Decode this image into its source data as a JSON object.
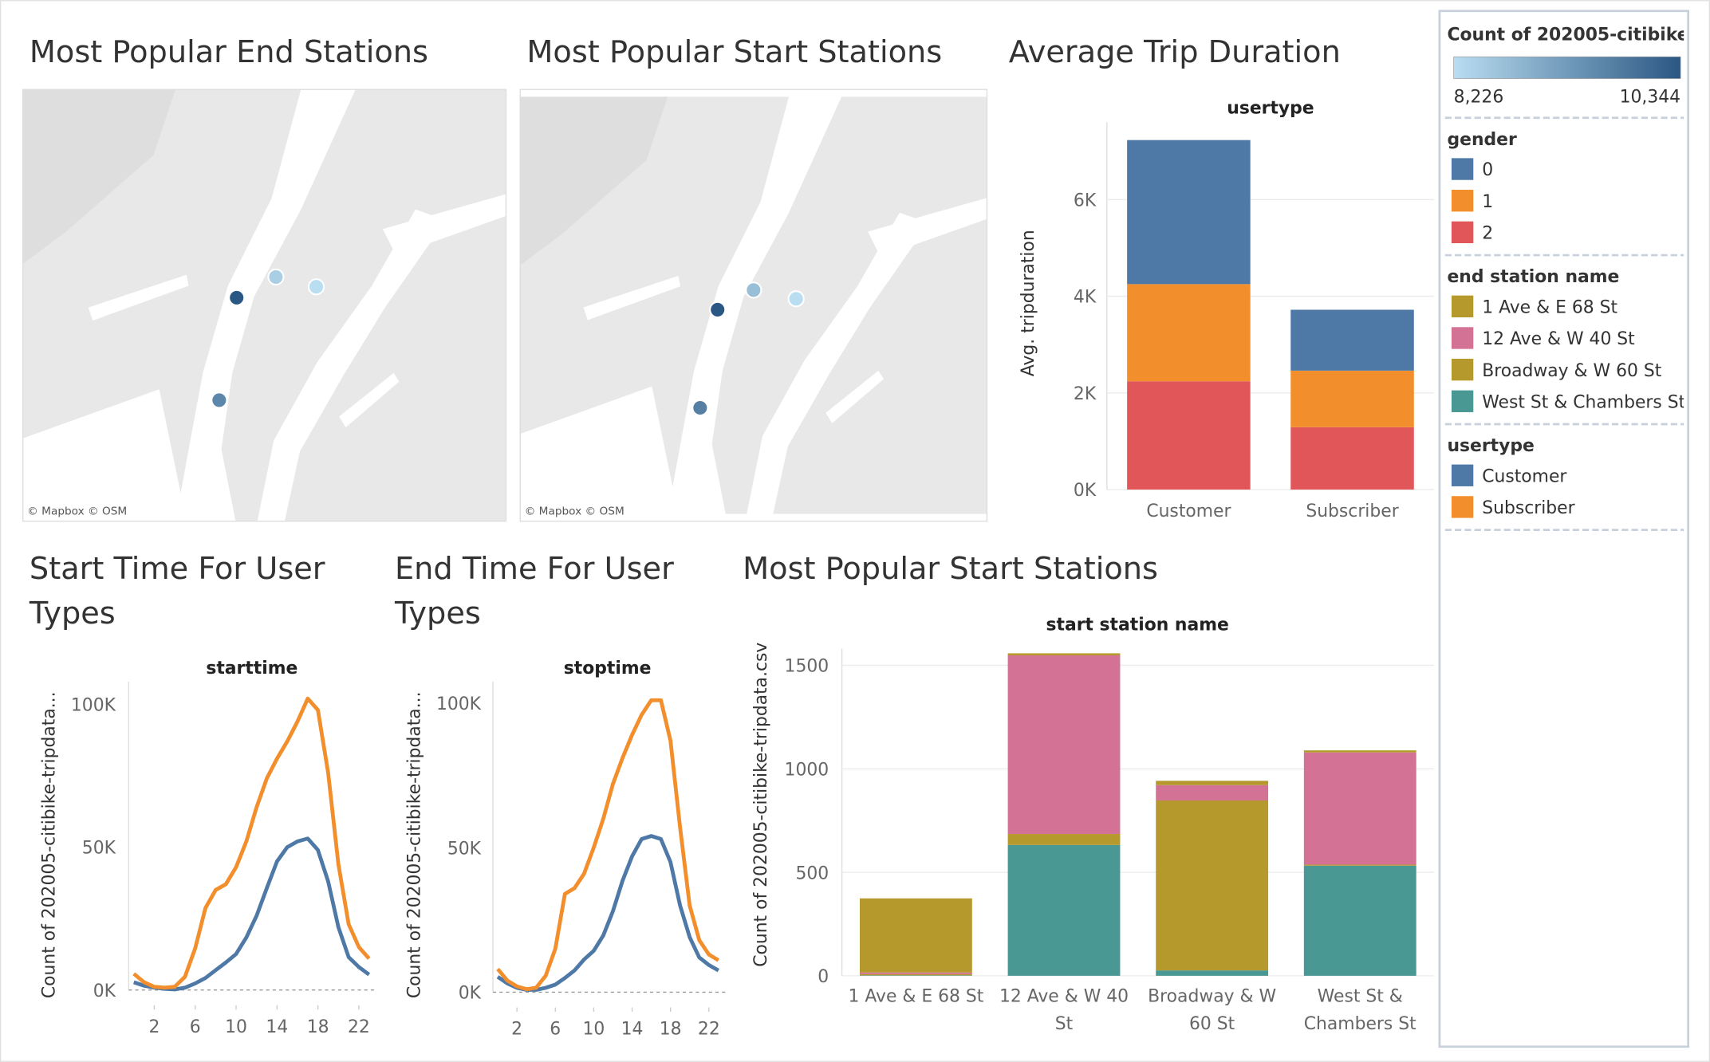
{
  "legend_panel": {
    "color_title": "Count of 202005-citibike-..",
    "color_min": {
      "value": 8226,
      "label": "8,226"
    },
    "color_max": {
      "value": 10344,
      "label": "10,344"
    },
    "colors": [
      "#b9ddf1",
      "#2a5783"
    ]
  },
  "chart_data": [
    {
      "type": "map",
      "title": "Most Popular End Stations",
      "attribution": "© Mapbox © OSM",
      "values": [
        10344,
        9600,
        8450,
        8226
      ]
    },
    {
      "type": "map",
      "title": "Most Popular Start Stations",
      "attribution": "© Mapbox © OSM",
      "values": [
        10344,
        9700,
        8700,
        8226
      ]
    },
    {
      "type": "bar",
      "title": "Average Trip Duration",
      "subtitle": "usertype",
      "y_label": "Avg. tripduration",
      "legend_title": "gender",
      "categories": [
        "Customer",
        "Subscriber"
      ],
      "series": [
        {
          "name": "0",
          "color": "#4e79a7",
          "values": [
            2980,
            1260
          ]
        },
        {
          "name": "1",
          "color": "#f28e2b",
          "values": [
            2010,
            1170
          ]
        },
        {
          "name": "2",
          "color": "#e15759",
          "values": [
            2240,
            1290
          ]
        }
      ],
      "ylim": [
        0,
        7600
      ],
      "yticks": [
        {
          "value": 0,
          "label": "0K"
        },
        {
          "value": 2000,
          "label": "2K"
        },
        {
          "value": 4000,
          "label": "4K"
        },
        {
          "value": 6000,
          "label": "6K"
        }
      ],
      "grid": true,
      "stacked": true
    },
    {
      "type": "line",
      "title": "Start Time For User Types",
      "subtitle": "starttime",
      "y_label": "Count of 202005-citibike-tripdata...",
      "legend_title": "usertype",
      "x": [
        0,
        1,
        2,
        3,
        4,
        5,
        6,
        7,
        8,
        9,
        10,
        11,
        12,
        13,
        14,
        15,
        16,
        17,
        18,
        19,
        20,
        21,
        22,
        23
      ],
      "series": [
        {
          "name": "Customer",
          "color": "#4e79a7",
          "values": [
            2700,
            1500,
            800,
            400,
            200,
            800,
            2300,
            4200,
            6900,
            9600,
            12600,
            18400,
            26000,
            35600,
            45000,
            50000,
            52000,
            53000,
            49000,
            38000,
            22000,
            11500,
            8000,
            5400
          ]
        },
        {
          "name": "Subscriber",
          "color": "#f28e2b",
          "values": [
            5700,
            2700,
            1100,
            800,
            1100,
            4600,
            14600,
            28700,
            35000,
            37000,
            43000,
            52000,
            64000,
            74000,
            81000,
            87000,
            94000,
            102000,
            98000,
            76000,
            44000,
            23000,
            15000,
            11000
          ]
        }
      ],
      "xlim": [
        -0.5,
        23.7
      ],
      "xticks": [
        2,
        6,
        10,
        14,
        18,
        22
      ],
      "ylim": [
        0,
        108000
      ],
      "yticks": [
        {
          "value": 0,
          "label": "0K"
        },
        {
          "value": 50000,
          "label": "50K"
        },
        {
          "value": 100000,
          "label": "100K"
        }
      ],
      "grid": false
    },
    {
      "type": "line",
      "title": "End Time For User Types",
      "subtitle": "stoptime",
      "y_label": "Count of 202005-citibike-tripdata...",
      "x": [
        0,
        1,
        2,
        3,
        4,
        5,
        6,
        7,
        8,
        9,
        10,
        11,
        12,
        13,
        14,
        15,
        16,
        17,
        18,
        19,
        20,
        21,
        22,
        23
      ],
      "series": [
        {
          "name": "Customer",
          "color": "#4e79a7",
          "values": [
            5300,
            3000,
            1500,
            800,
            800,
            1500,
            2600,
            4900,
            7500,
            11300,
            14300,
            19600,
            28000,
            38500,
            47000,
            53000,
            54000,
            53000,
            45000,
            30000,
            19000,
            12000,
            9400,
            7500
          ]
        },
        {
          "name": "Subscriber",
          "color": "#f28e2b",
          "values": [
            8000,
            4000,
            2000,
            1000,
            1500,
            5700,
            15000,
            34000,
            36000,
            41000,
            50000,
            60000,
            72000,
            81000,
            89000,
            96000,
            101000,
            101000,
            87000,
            57000,
            30000,
            18000,
            13000,
            11000
          ]
        }
      ],
      "xlim": [
        -0.5,
        23.7
      ],
      "xticks": [
        2,
        6,
        10,
        14,
        18,
        22
      ],
      "ylim": [
        0,
        107500
      ],
      "yticks": [
        {
          "value": 0,
          "label": "0K"
        },
        {
          "value": 50000,
          "label": "50K"
        },
        {
          "value": 100000,
          "label": "100K"
        }
      ],
      "grid": false
    },
    {
      "type": "bar",
      "title": "Most Popular Start Stations",
      "subtitle": "start station name",
      "y_label": "Count of 202005-citibike-tripdata.csv",
      "legend_title": "end station name",
      "categories": [
        "1 Ave & E 68 St",
        "12 Ave & W 40 St",
        "Broadway & W 60 St",
        "West St & Chambers St"
      ],
      "series": [
        {
          "name": "1 Ave & E 68 St",
          "color": "#b6992d",
          "values": [
            358,
            10,
            21,
            10
          ]
        },
        {
          "name": "12 Ave & W 40 St",
          "color": "#d37295",
          "values": [
            8,
            863,
            74,
            542
          ]
        },
        {
          "name": "Broadway & W 60 St",
          "color": "#b6992d",
          "values": [
            6,
            53,
            821,
            5
          ]
        },
        {
          "name": "West St & Chambers St",
          "color": "#499894",
          "values": [
            2,
            632,
            26,
            532
          ]
        }
      ],
      "ylim": [
        0,
        1580
      ],
      "yticks": [
        0,
        500,
        1000,
        1500
      ],
      "grid": true,
      "stacked": true
    }
  ]
}
